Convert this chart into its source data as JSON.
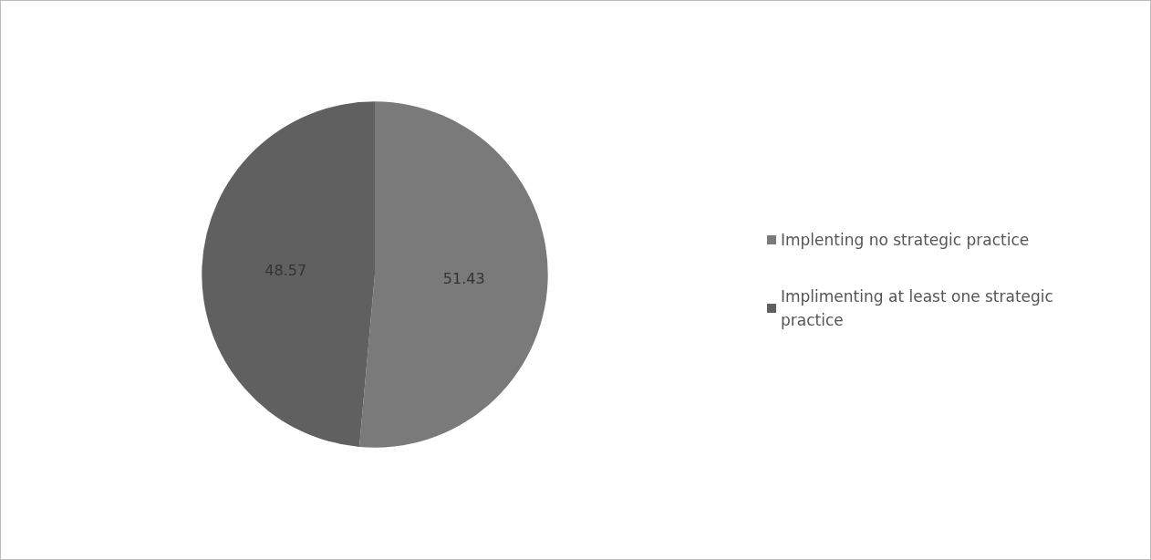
{
  "chart_data": {
    "type": "pie",
    "categories": [
      "Implenting no strategic practice",
      "Implimenting at least one strategic practice"
    ],
    "values": [
      51.43,
      48.57
    ],
    "colors": [
      "#7a7a7a",
      "#606060"
    ],
    "data_labels": true,
    "legend": "right"
  }
}
